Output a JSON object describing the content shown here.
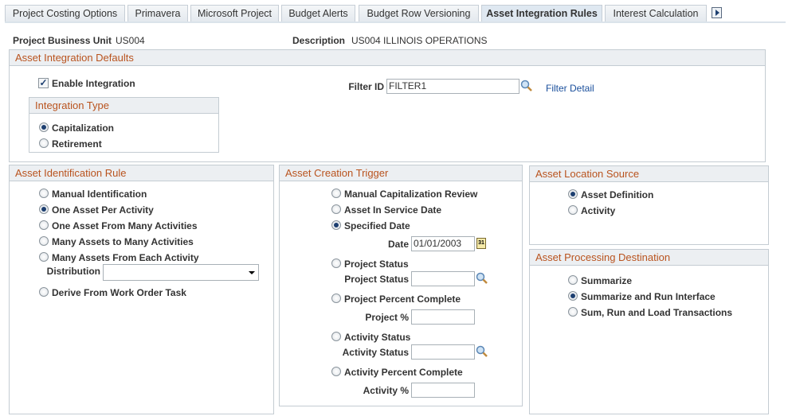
{
  "tabs": [
    {
      "label": "Project Costing Options",
      "active": false
    },
    {
      "label": "Primavera",
      "active": false
    },
    {
      "label": "Microsoft Project",
      "active": false
    },
    {
      "label": "Budget Alerts",
      "active": false
    },
    {
      "label": "Budget Row Versioning",
      "active": false
    },
    {
      "label": "Asset Integration Rules",
      "active": true
    },
    {
      "label": "Interest Calculation",
      "active": false
    }
  ],
  "header": {
    "bu_label": "Project Business Unit",
    "bu_value": "US004",
    "desc_label": "Description",
    "desc_value": "US004 ILLINOIS OPERATIONS"
  },
  "defaults": {
    "title": "Asset Integration Defaults",
    "enable_label": "Enable Integration",
    "enable_checked": true,
    "filter_label": "Filter ID",
    "filter_value": "FILTER1",
    "filter_link": "Filter Detail",
    "integration_type": {
      "title": "Integration Type",
      "options": [
        "Capitalization",
        "Retirement"
      ],
      "selected": "Capitalization"
    }
  },
  "identification": {
    "title": "Asset Identification Rule",
    "options": [
      "Manual Identification",
      "One Asset Per Activity",
      "One Asset From Many Activities",
      "Many Assets to Many Activities",
      "Many Assets From Each Activity",
      "Derive From Work Order Task"
    ],
    "selected": "One Asset Per Activity",
    "distribution_label": "Distribution",
    "distribution_value": ""
  },
  "trigger": {
    "title": "Asset Creation Trigger",
    "options": [
      "Manual Capitalization Review",
      "Asset In Service Date",
      "Specified Date",
      "Project Status",
      "Project Percent Complete",
      "Activity Status",
      "Activity Percent Complete"
    ],
    "selected": "Specified Date",
    "date_label": "Date",
    "date_value": "01/01/2003",
    "project_status_label": "Project Status",
    "project_status_value": "",
    "project_pct_label": "Project %",
    "project_pct_value": "",
    "activity_status_label": "Activity Status",
    "activity_status_value": "",
    "activity_pct_label": "Activity %",
    "activity_pct_value": ""
  },
  "location": {
    "title": "Asset Location Source",
    "options": [
      "Asset Definition",
      "Activity"
    ],
    "selected": "Asset Definition"
  },
  "processing": {
    "title": "Asset Processing Destination",
    "options": [
      "Summarize",
      "Summarize and Run Interface",
      "Sum, Run and Load Transactions"
    ],
    "selected": "Summarize and Run Interface"
  },
  "colors": {
    "section_title": "#b9531e",
    "link": "#1a4f9c",
    "header_band": "#eceff2"
  }
}
